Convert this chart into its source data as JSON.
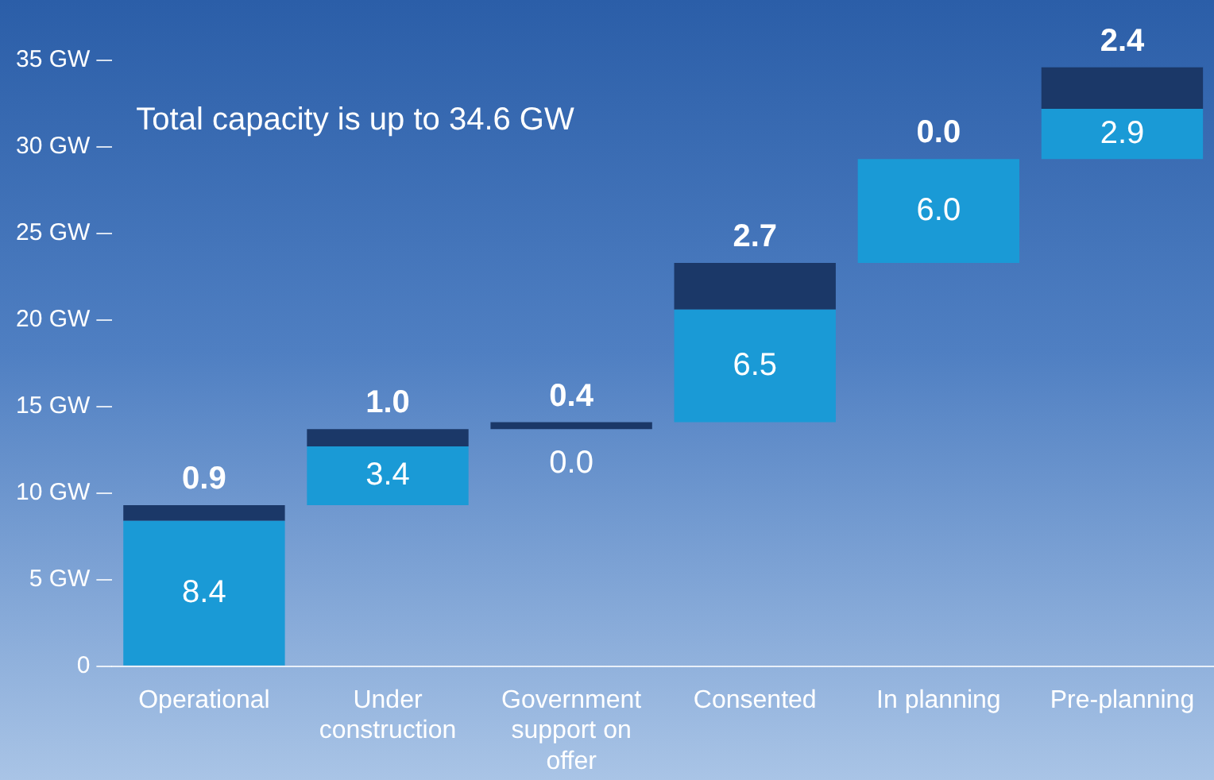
{
  "chart_data": {
    "type": "bar",
    "categories": [
      "Operational",
      "Under construction",
      "Government support on offer",
      "Consented",
      "In planning",
      "Pre-planning"
    ],
    "series": [
      {
        "color": "#1a9ad6",
        "base": [
          0,
          9.3,
          null,
          14.1,
          23.3,
          29.3
        ],
        "values": [
          8.4,
          3.4,
          0.0,
          6.5,
          6.0,
          2.9
        ],
        "value_labels": [
          "8.4",
          "3.4",
          null,
          "6.5",
          "6.0",
          "2.9"
        ]
      },
      {
        "color": "#1b3868",
        "base": [
          8.4,
          12.7,
          13.7,
          20.6,
          null,
          32.2
        ],
        "values": [
          0.9,
          1.0,
          0.4,
          2.7,
          0.0,
          2.4
        ],
        "value_labels": [
          "0.9",
          "1.0",
          "0.4",
          "2.7",
          null,
          "2.4"
        ]
      }
    ],
    "ylim": [
      0,
      35
    ],
    "yticks": [
      0,
      {
        "value": 5,
        "label": "5 GW"
      },
      {
        "value": 10,
        "label": "10 GW"
      },
      {
        "value": 15,
        "label": "15 GW"
      },
      {
        "value": 20,
        "label": "20 GW"
      },
      {
        "value": 25,
        "label": "25 GW"
      },
      {
        "value": 30,
        "label": "30 GW"
      },
      {
        "value": 35,
        "label": "35 GW"
      }
    ],
    "grid": false,
    "legend": false,
    "annotations": [
      "Total capacity is up to 34.6 GW",
      {
        "text": "0.0",
        "x": "Government support on offer",
        "y": 13.7
      },
      {
        "text": "0.0",
        "x": "In planning",
        "y": 29.3
      }
    ]
  }
}
